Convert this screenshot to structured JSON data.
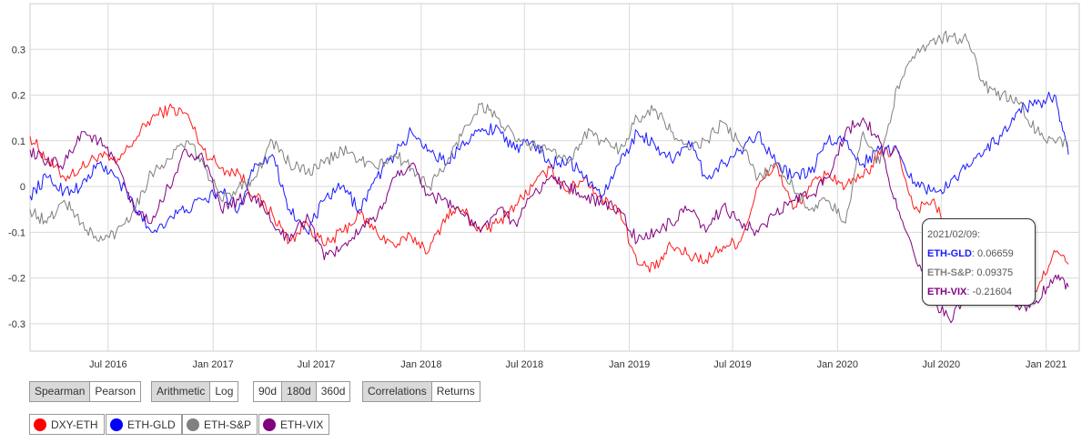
{
  "controls": {
    "method": {
      "options": [
        "Spearman",
        "Pearson"
      ],
      "selected": "Spearman"
    },
    "scale": {
      "options": [
        "Arithmetic",
        "Log"
      ],
      "selected": "Arithmetic"
    },
    "window": {
      "options": [
        "90d",
        "180d",
        "360d"
      ],
      "selected": "180d"
    },
    "view": {
      "options": [
        "Correlations",
        "Returns"
      ],
      "selected": "Correlations"
    }
  },
  "colors": {
    "DXY-ETH": "#ff1a1a",
    "ETH-GLD": "#1a1aff",
    "ETH-S&P": "#808080",
    "ETH-VIX": "#800080"
  },
  "tooltip": {
    "date": "2021/02/09:",
    "rows": [
      {
        "series": "ETH-GLD",
        "value": "0.06659",
        "color": "#1a1aff"
      },
      {
        "series": "ETH-S&P",
        "value": "0.09375",
        "color": "#808080"
      },
      {
        "series": "ETH-VIX",
        "value": "-0.21604",
        "color": "#800080"
      }
    ]
  },
  "chart_data": {
    "type": "line",
    "title": "",
    "xlabel": "",
    "ylabel": "",
    "x_range": [
      "2016-02-15",
      "2021-02-28"
    ],
    "ylim": [
      -0.36,
      0.4
    ],
    "y_ticks": [
      0.3,
      0.2,
      0.1,
      0,
      -0.1,
      -0.2,
      -0.3
    ],
    "y_tick_labels": [
      "0.3",
      "0.2",
      "0.1",
      "0",
      "-0.1",
      "-0.2",
      "-0.3"
    ],
    "x_ticks": [
      "2016-07-01",
      "2017-01-01",
      "2017-07-01",
      "2018-01-01",
      "2018-07-01",
      "2019-01-01",
      "2019-07-01",
      "2020-01-01",
      "2020-07-01",
      "2021-01-01"
    ],
    "x_tick_labels": [
      "Jul 2016",
      "Jan 2017",
      "Jul 2017",
      "Jan 2018",
      "Jul 2018",
      "Jan 2019",
      "Jul 2019",
      "Jan 2020",
      "Jul 2020",
      "Jan 2021"
    ],
    "grid": true,
    "legend_position": "bottom-left",
    "series": [
      {
        "name": "DXY-ETH",
        "color": "#ff1a1a",
        "x": [
          "2016-02-15",
          "2016-03-15",
          "2016-04-15",
          "2016-05-15",
          "2016-06-15",
          "2016-07-15",
          "2016-08-15",
          "2016-09-15",
          "2016-10-15",
          "2016-11-15",
          "2016-12-15",
          "2017-01-15",
          "2017-02-15",
          "2017-03-15",
          "2017-04-15",
          "2017-05-15",
          "2017-06-15",
          "2017-07-15",
          "2017-08-15",
          "2017-09-15",
          "2017-10-15",
          "2017-11-15",
          "2017-12-15",
          "2018-01-15",
          "2018-02-15",
          "2018-03-15",
          "2018-04-15",
          "2018-05-15",
          "2018-06-15",
          "2018-07-15",
          "2018-08-15",
          "2018-09-15",
          "2018-10-15",
          "2018-11-15",
          "2018-12-15",
          "2019-01-15",
          "2019-02-15",
          "2019-03-15",
          "2019-04-15",
          "2019-05-15",
          "2019-06-15",
          "2019-07-15",
          "2019-08-15",
          "2019-09-15",
          "2019-10-15",
          "2019-11-15",
          "2019-12-15",
          "2020-01-15",
          "2020-02-15",
          "2020-03-15",
          "2020-04-15",
          "2020-05-15",
          "2020-06-15",
          "2020-07-15",
          "2020-08-15",
          "2020-09-15",
          "2020-10-15",
          "2020-11-15",
          "2020-12-15",
          "2021-01-15",
          "2021-02-09"
        ],
        "y": [
          0.11,
          0.06,
          0.02,
          0.04,
          0.07,
          0.05,
          0.1,
          0.15,
          0.17,
          0.16,
          0.08,
          0.04,
          0.03,
          -0.02,
          -0.06,
          -0.12,
          -0.08,
          -0.13,
          -0.1,
          -0.06,
          -0.1,
          -0.13,
          -0.11,
          -0.14,
          -0.06,
          -0.05,
          -0.1,
          -0.08,
          -0.04,
          0,
          0.04,
          -0.01,
          0.02,
          -0.03,
          -0.05,
          -0.17,
          -0.18,
          -0.13,
          -0.15,
          -0.16,
          -0.13,
          -0.12,
          0,
          0.05,
          -0.05,
          0,
          0.03,
          0,
          0.02,
          0.07,
          0.08,
          -0.05,
          -0.03,
          -0.1,
          -0.17,
          -0.22,
          -0.2,
          -0.26,
          -0.23,
          -0.14,
          -0.17
        ]
      },
      {
        "name": "ETH-GLD",
        "color": "#1a1aff",
        "x": [
          "2016-02-15",
          "2016-03-15",
          "2016-04-15",
          "2016-05-15",
          "2016-06-15",
          "2016-07-15",
          "2016-08-15",
          "2016-09-15",
          "2016-10-15",
          "2016-11-15",
          "2016-12-15",
          "2017-01-15",
          "2017-02-15",
          "2017-03-15",
          "2017-04-15",
          "2017-05-15",
          "2017-06-15",
          "2017-07-15",
          "2017-08-15",
          "2017-09-15",
          "2017-10-15",
          "2017-11-15",
          "2017-12-15",
          "2018-01-15",
          "2018-02-15",
          "2018-03-15",
          "2018-04-15",
          "2018-05-15",
          "2018-06-15",
          "2018-07-15",
          "2018-08-15",
          "2018-09-15",
          "2018-10-15",
          "2018-11-15",
          "2018-12-15",
          "2019-01-15",
          "2019-02-15",
          "2019-03-15",
          "2019-04-15",
          "2019-05-15",
          "2019-06-15",
          "2019-07-15",
          "2019-08-15",
          "2019-09-15",
          "2019-10-15",
          "2019-11-15",
          "2019-12-15",
          "2020-01-15",
          "2020-02-15",
          "2020-03-15",
          "2020-04-15",
          "2020-05-15",
          "2020-06-15",
          "2020-07-15",
          "2020-08-15",
          "2020-09-15",
          "2020-10-15",
          "2020-11-15",
          "2020-12-15",
          "2021-01-15",
          "2021-02-09"
        ],
        "y": [
          -0.02,
          0.02,
          -0.01,
          0,
          0.05,
          0.02,
          -0.04,
          -0.1,
          -0.07,
          -0.05,
          -0.03,
          -0.01,
          -0.05,
          0.05,
          0.07,
          -0.05,
          -0.1,
          -0.03,
          0,
          -0.05,
          0.02,
          0.07,
          0.12,
          0.08,
          0.05,
          0.1,
          0.12,
          0.13,
          0.08,
          0.1,
          0.05,
          0.06,
          0.02,
          -0.02,
          0.05,
          0.12,
          0.09,
          0.06,
          0.1,
          0.02,
          0.05,
          0.08,
          0.12,
          0.05,
          0.02,
          0.03,
          0.1,
          0.1,
          0.05,
          0.08,
          0.08,
          0.01,
          -0.01,
          0,
          0.05,
          0.08,
          0.11,
          0.17,
          0.18,
          0.2,
          0.07
        ]
      },
      {
        "name": "ETH-S&P",
        "color": "#808080",
        "x": [
          "2016-02-15",
          "2016-03-15",
          "2016-04-15",
          "2016-05-15",
          "2016-06-15",
          "2016-07-15",
          "2016-08-15",
          "2016-09-15",
          "2016-10-15",
          "2016-11-15",
          "2016-12-15",
          "2017-01-15",
          "2017-02-15",
          "2017-03-15",
          "2017-04-15",
          "2017-05-15",
          "2017-06-15",
          "2017-07-15",
          "2017-08-15",
          "2017-09-15",
          "2017-10-15",
          "2017-11-15",
          "2017-12-15",
          "2018-01-15",
          "2018-02-15",
          "2018-03-15",
          "2018-04-15",
          "2018-05-15",
          "2018-06-15",
          "2018-07-15",
          "2018-08-15",
          "2018-09-15",
          "2018-10-15",
          "2018-11-15",
          "2018-12-15",
          "2019-01-15",
          "2019-02-15",
          "2019-03-15",
          "2019-04-15",
          "2019-05-15",
          "2019-06-15",
          "2019-07-15",
          "2019-08-15",
          "2019-09-15",
          "2019-10-15",
          "2019-11-15",
          "2019-12-15",
          "2020-01-15",
          "2020-02-15",
          "2020-03-15",
          "2020-04-15",
          "2020-05-15",
          "2020-06-15",
          "2020-07-15",
          "2020-08-15",
          "2020-09-15",
          "2020-10-15",
          "2020-11-15",
          "2020-12-15",
          "2021-01-15",
          "2021-02-09"
        ],
        "y": [
          -0.05,
          -0.08,
          -0.03,
          -0.08,
          -0.12,
          -0.1,
          -0.05,
          0.03,
          0.06,
          0.1,
          0.05,
          -0.03,
          0,
          0.02,
          0.1,
          0.05,
          0.03,
          0.05,
          0.08,
          0.06,
          0.04,
          0.07,
          0.04,
          0,
          0.05,
          0.12,
          0.18,
          0.15,
          0.1,
          0.09,
          0.08,
          0.05,
          0.12,
          0.1,
          0.08,
          0.15,
          0.17,
          0.12,
          0.08,
          0.1,
          0.14,
          0.09,
          0.02,
          0.05,
          0,
          -0.05,
          -0.03,
          -0.08,
          0.12,
          0.05,
          0.22,
          0.28,
          0.32,
          0.33,
          0.32,
          0.22,
          0.2,
          0.18,
          0.12,
          0.1,
          0.09
        ]
      },
      {
        "name": "ETH-VIX",
        "color": "#800080",
        "x": [
          "2016-02-15",
          "2016-03-15",
          "2016-04-15",
          "2016-05-15",
          "2016-06-15",
          "2016-07-15",
          "2016-08-15",
          "2016-09-15",
          "2016-10-15",
          "2016-11-15",
          "2016-12-15",
          "2017-01-15",
          "2017-02-15",
          "2017-03-15",
          "2017-04-15",
          "2017-05-15",
          "2017-06-15",
          "2017-07-15",
          "2017-08-15",
          "2017-09-15",
          "2017-10-15",
          "2017-11-15",
          "2017-12-15",
          "2018-01-15",
          "2018-02-15",
          "2018-03-15",
          "2018-04-15",
          "2018-05-15",
          "2018-06-15",
          "2018-07-15",
          "2018-08-15",
          "2018-09-15",
          "2018-10-15",
          "2018-11-15",
          "2018-12-15",
          "2019-01-15",
          "2019-02-15",
          "2019-03-15",
          "2019-04-15",
          "2019-05-15",
          "2019-06-15",
          "2019-07-15",
          "2019-08-15",
          "2019-09-15",
          "2019-10-15",
          "2019-11-15",
          "2019-12-15",
          "2020-01-15",
          "2020-02-15",
          "2020-03-15",
          "2020-04-15",
          "2020-05-15",
          "2020-06-15",
          "2020-07-15",
          "2020-08-15",
          "2020-09-15",
          "2020-10-15",
          "2020-11-15",
          "2020-12-15",
          "2021-01-15",
          "2021-02-09"
        ],
        "y": [
          0.08,
          0.05,
          0.05,
          0.12,
          0.1,
          0.05,
          -0.05,
          -0.08,
          0,
          0.08,
          0.06,
          -0.05,
          -0.03,
          -0.02,
          -0.08,
          -0.12,
          -0.06,
          -0.16,
          -0.13,
          -0.1,
          -0.07,
          0.02,
          0.05,
          -0.02,
          -0.03,
          -0.06,
          -0.1,
          -0.05,
          -0.08,
          -0.02,
          0.02,
          0,
          -0.02,
          -0.04,
          -0.05,
          -0.12,
          -0.1,
          -0.08,
          -0.05,
          -0.1,
          -0.04,
          -0.08,
          -0.1,
          -0.06,
          -0.03,
          -0.02,
          0.02,
          0.12,
          0.15,
          0.1,
          -0.05,
          -0.15,
          -0.25,
          -0.29,
          -0.25,
          -0.22,
          -0.2,
          -0.27,
          -0.25,
          -0.2,
          -0.22
        ]
      }
    ]
  }
}
